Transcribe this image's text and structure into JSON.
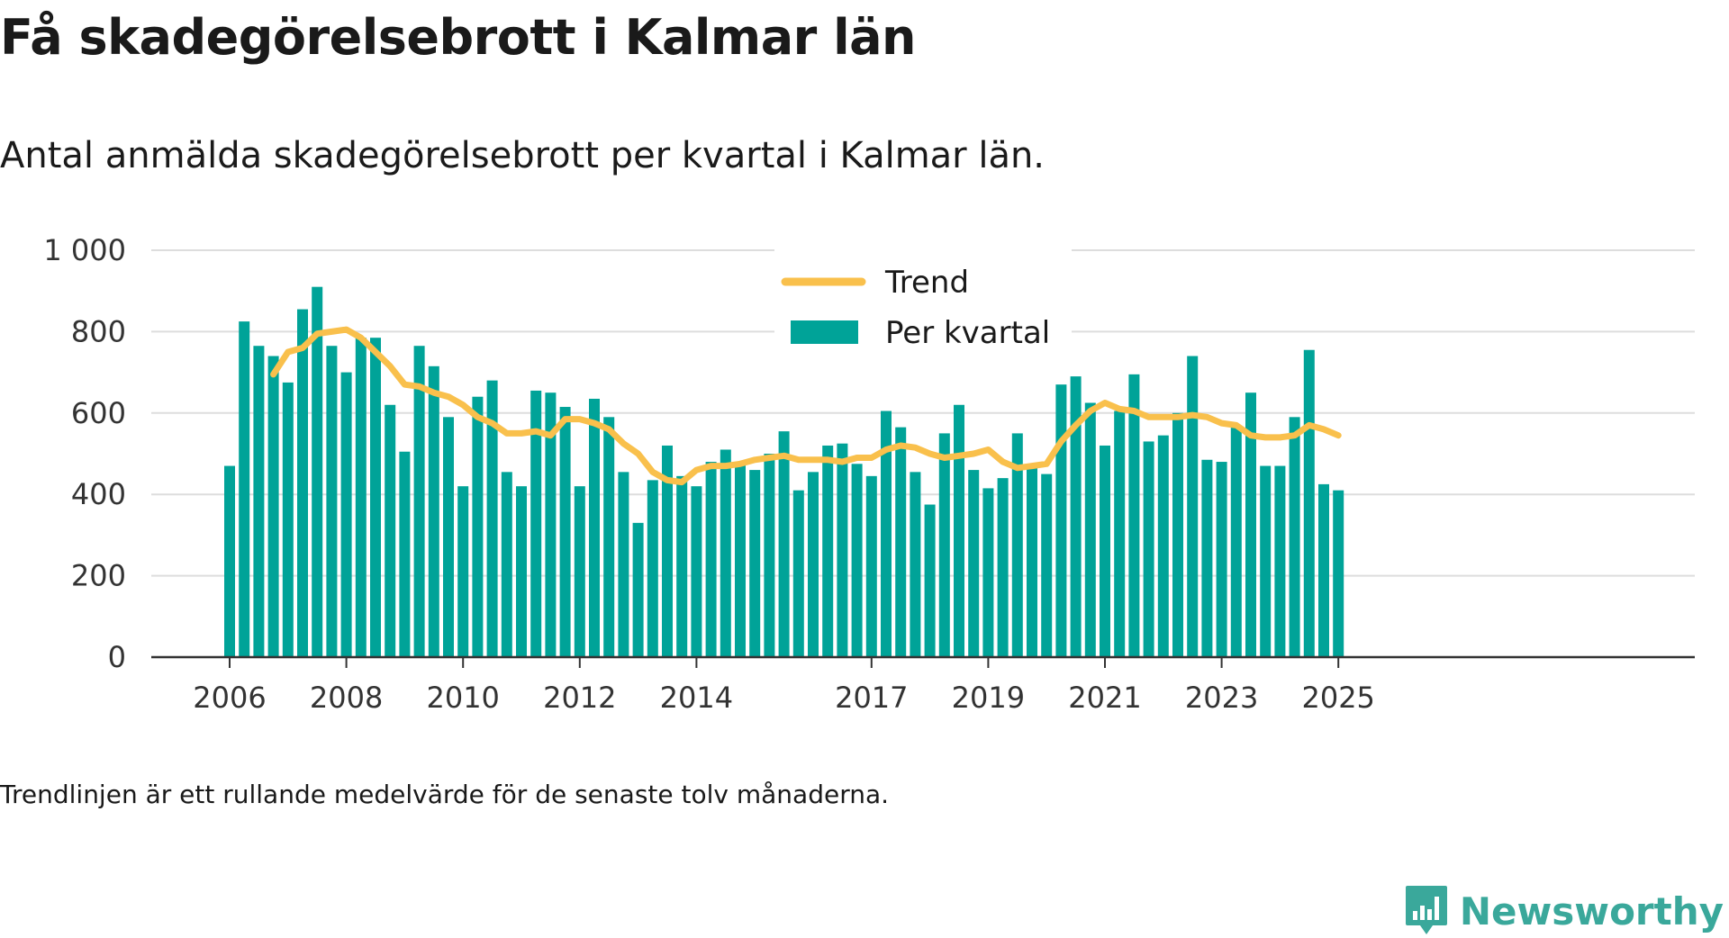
{
  "title": "Få skadegörelsebrott i Kalmar län",
  "subtitle": "Antal anmälda skadegörelsebrott per kvartal i Kalmar län.",
  "note": "Trendlinjen är ett rullande medelvärde för de senaste tolv månaderna.",
  "brand": "Newsworthy",
  "colors": {
    "bar": "#00a398",
    "trend": "#f9c04c",
    "grid": "#dddddd",
    "axis": "#333333",
    "brand": "#3aa89b"
  },
  "chart_data": {
    "type": "bar",
    "x_start": "2006 Q1",
    "x_tick_labels": [
      "2006",
      "2008",
      "2010",
      "2012",
      "2014",
      "2017",
      "2019",
      "2021",
      "2023",
      "2025"
    ],
    "y_tick_labels": [
      "0",
      "200",
      "400",
      "600",
      "800",
      "1 000"
    ],
    "ylim": [
      0,
      1000
    ],
    "legend": {
      "position": "top-center",
      "trend_label": "Trend",
      "bar_label": "Per kvartal"
    },
    "grid": true,
    "series": [
      {
        "name": "Per kvartal",
        "type": "bar",
        "values": [
          470,
          825,
          765,
          740,
          675,
          855,
          910,
          765,
          700,
          785,
          785,
          620,
          505,
          765,
          715,
          590,
          420,
          640,
          680,
          455,
          420,
          655,
          650,
          615,
          420,
          635,
          590,
          455,
          330,
          435,
          520,
          445,
          420,
          480,
          510,
          480,
          460,
          500,
          555,
          410,
          455,
          520,
          525,
          475,
          445,
          605,
          565,
          455,
          375,
          550,
          620,
          460,
          415,
          440,
          550,
          465,
          450,
          670,
          690,
          625,
          520,
          605,
          695,
          530,
          545,
          600,
          740,
          485,
          480,
          565,
          650,
          470,
          470,
          590,
          755,
          425,
          410
        ]
      },
      {
        "name": "Trend",
        "type": "line",
        "start_index": 3,
        "values": [
          695,
          750,
          760,
          795,
          800,
          805,
          785,
          750,
          715,
          670,
          665,
          650,
          640,
          620,
          590,
          575,
          550,
          550,
          555,
          545,
          585,
          585,
          575,
          560,
          525,
          500,
          455,
          435,
          430,
          460,
          470,
          470,
          475,
          485,
          490,
          495,
          485,
          485,
          485,
          480,
          490,
          490,
          510,
          520,
          515,
          500,
          490,
          495,
          500,
          510,
          480,
          465,
          470,
          475,
          530,
          570,
          605,
          625,
          610,
          605,
          590,
          590,
          590,
          595,
          590,
          575,
          570,
          545,
          540,
          540,
          545,
          570,
          560,
          545
        ]
      }
    ]
  }
}
